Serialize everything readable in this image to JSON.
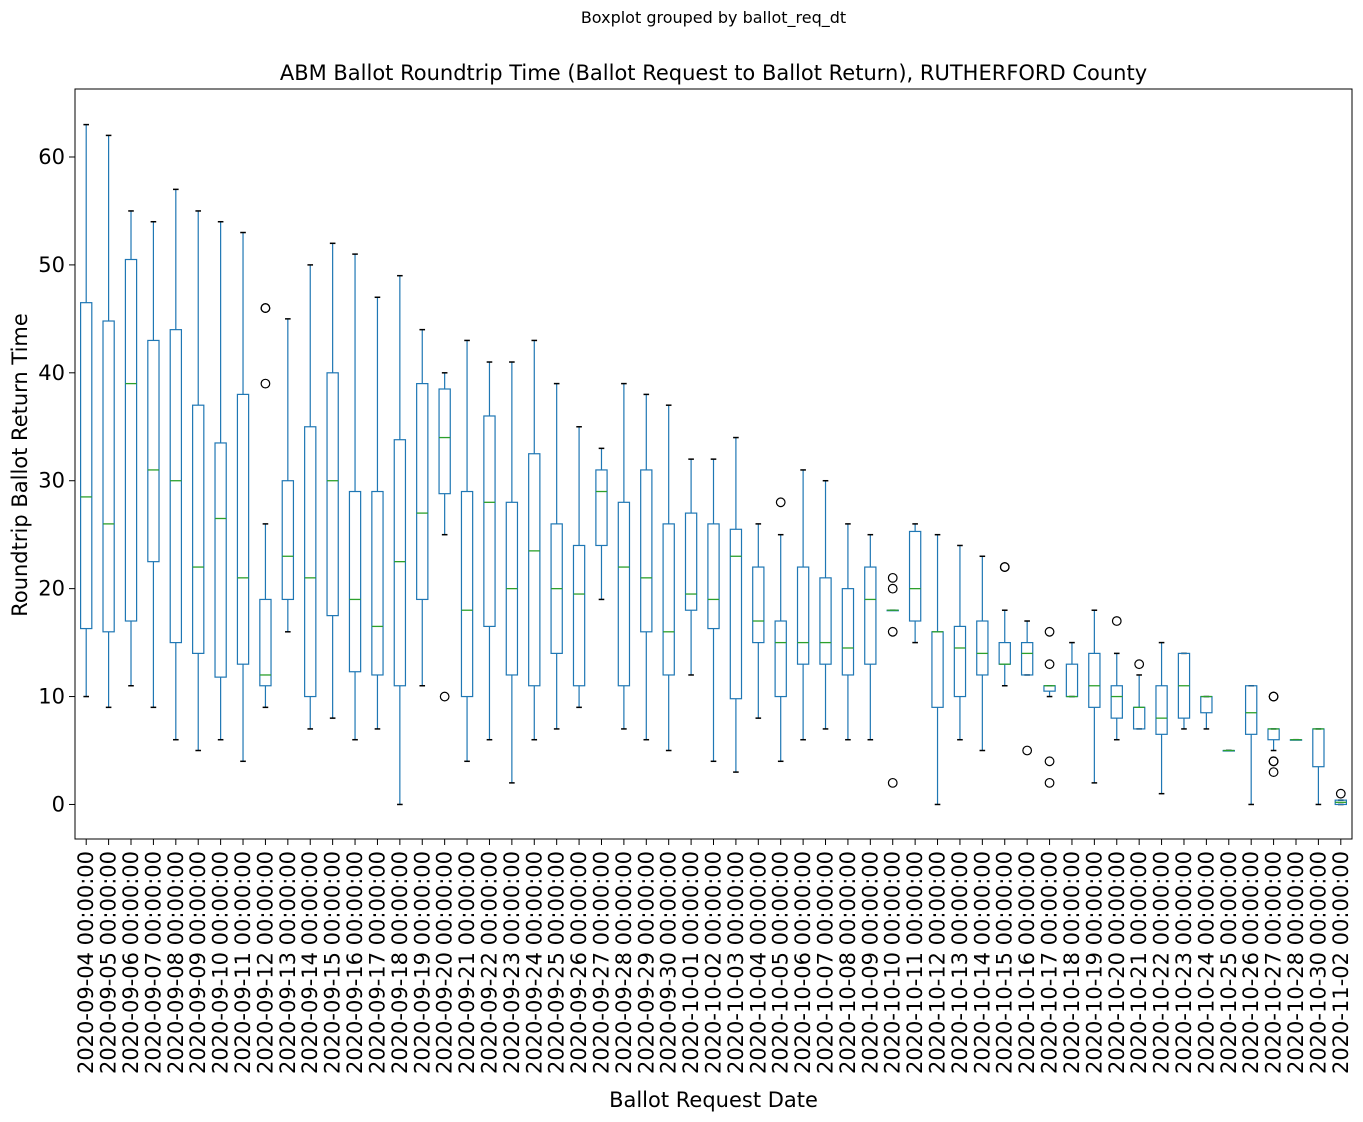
{
  "chart_data": {
    "type": "boxplot",
    "suptitle": "Boxplot grouped by ballot_req_dt",
    "title": "ABM Ballot Roundtrip Time (Ballot Request to Ballot Return), RUTHERFORD County",
    "xlabel": "Ballot Request Date",
    "ylabel": "Roundtrip Ballot Return Time",
    "ylim": [
      -3.2,
      66.3
    ],
    "yticks": [
      0,
      10,
      20,
      30,
      40,
      50,
      60
    ],
    "grid": false,
    "colors": {
      "box": "#1f77b4",
      "median": "#2ca02c",
      "outlier": "#000000"
    },
    "categories": [
      "2020-09-04 00:00:00",
      "2020-09-05 00:00:00",
      "2020-09-06 00:00:00",
      "2020-09-07 00:00:00",
      "2020-09-08 00:00:00",
      "2020-09-09 00:00:00",
      "2020-09-10 00:00:00",
      "2020-09-11 00:00:00",
      "2020-09-12 00:00:00",
      "2020-09-13 00:00:00",
      "2020-09-14 00:00:00",
      "2020-09-15 00:00:00",
      "2020-09-16 00:00:00",
      "2020-09-17 00:00:00",
      "2020-09-18 00:00:00",
      "2020-09-19 00:00:00",
      "2020-09-20 00:00:00",
      "2020-09-21 00:00:00",
      "2020-09-22 00:00:00",
      "2020-09-23 00:00:00",
      "2020-09-24 00:00:00",
      "2020-09-25 00:00:00",
      "2020-09-26 00:00:00",
      "2020-09-27 00:00:00",
      "2020-09-28 00:00:00",
      "2020-09-29 00:00:00",
      "2020-09-30 00:00:00",
      "2020-10-01 00:00:00",
      "2020-10-02 00:00:00",
      "2020-10-03 00:00:00",
      "2020-10-04 00:00:00",
      "2020-10-05 00:00:00",
      "2020-10-06 00:00:00",
      "2020-10-07 00:00:00",
      "2020-10-08 00:00:00",
      "2020-10-09 00:00:00",
      "2020-10-10 00:00:00",
      "2020-10-11 00:00:00",
      "2020-10-12 00:00:00",
      "2020-10-13 00:00:00",
      "2020-10-14 00:00:00",
      "2020-10-15 00:00:00",
      "2020-10-16 00:00:00",
      "2020-10-17 00:00:00",
      "2020-10-18 00:00:00",
      "2020-10-19 00:00:00",
      "2020-10-20 00:00:00",
      "2020-10-21 00:00:00",
      "2020-10-22 00:00:00",
      "2020-10-23 00:00:00",
      "2020-10-24 00:00:00",
      "2020-10-25 00:00:00",
      "2020-10-26 00:00:00",
      "2020-10-27 00:00:00",
      "2020-10-28 00:00:00",
      "2020-10-30 00:00:00",
      "2020-11-02 00:00:00"
    ],
    "boxes": [
      {
        "lw": 10,
        "q1": 16.3,
        "med": 28.5,
        "q3": 46.5,
        "uw": 63,
        "fl": []
      },
      {
        "lw": 9,
        "q1": 16,
        "med": 26,
        "q3": 44.8,
        "uw": 62,
        "fl": []
      },
      {
        "lw": 11,
        "q1": 17,
        "med": 39,
        "q3": 50.5,
        "uw": 55,
        "fl": []
      },
      {
        "lw": 9,
        "q1": 22.5,
        "med": 31,
        "q3": 43,
        "uw": 54,
        "fl": []
      },
      {
        "lw": 6,
        "q1": 15,
        "med": 30,
        "q3": 44,
        "uw": 57,
        "fl": []
      },
      {
        "lw": 5,
        "q1": 14,
        "med": 22,
        "q3": 37,
        "uw": 55,
        "fl": []
      },
      {
        "lw": 6,
        "q1": 11.8,
        "med": 26.5,
        "q3": 33.5,
        "uw": 54,
        "fl": []
      },
      {
        "lw": 4,
        "q1": 13,
        "med": 21,
        "q3": 38,
        "uw": 53,
        "fl": []
      },
      {
        "lw": 9,
        "q1": 11,
        "med": 12,
        "q3": 19,
        "uw": 26,
        "fl": [
          39,
          46,
          46
        ]
      },
      {
        "lw": 16,
        "q1": 19,
        "med": 23,
        "q3": 30,
        "uw": 45,
        "fl": []
      },
      {
        "lw": 7,
        "q1": 10,
        "med": 21,
        "q3": 35,
        "uw": 50,
        "fl": []
      },
      {
        "lw": 8,
        "q1": 17.5,
        "med": 30,
        "q3": 40,
        "uw": 52,
        "fl": []
      },
      {
        "lw": 6,
        "q1": 12.3,
        "med": 19,
        "q3": 29,
        "uw": 51,
        "fl": []
      },
      {
        "lw": 7,
        "q1": 12,
        "med": 16.5,
        "q3": 29,
        "uw": 47,
        "fl": []
      },
      {
        "lw": 0,
        "q1": 11,
        "med": 22.5,
        "q3": 33.8,
        "uw": 49,
        "fl": []
      },
      {
        "lw": 11,
        "q1": 19,
        "med": 27,
        "q3": 39,
        "uw": 44,
        "fl": []
      },
      {
        "lw": 25,
        "q1": 28.8,
        "med": 34,
        "q3": 38.5,
        "uw": 40,
        "fl": [
          10
        ]
      },
      {
        "lw": 4,
        "q1": 10,
        "med": 18,
        "q3": 29,
        "uw": 43,
        "fl": []
      },
      {
        "lw": 6,
        "q1": 16.5,
        "med": 28,
        "q3": 36,
        "uw": 41,
        "fl": []
      },
      {
        "lw": 2,
        "q1": 12,
        "med": 20,
        "q3": 28,
        "uw": 41,
        "fl": []
      },
      {
        "lw": 6,
        "q1": 11,
        "med": 23.5,
        "q3": 32.5,
        "uw": 43,
        "fl": []
      },
      {
        "lw": 7,
        "q1": 14,
        "med": 20,
        "q3": 26,
        "uw": 39,
        "fl": []
      },
      {
        "lw": 9,
        "q1": 11,
        "med": 19.5,
        "q3": 24,
        "uw": 35,
        "fl": []
      },
      {
        "lw": 19,
        "q1": 24,
        "med": 29,
        "q3": 31,
        "uw": 33,
        "fl": []
      },
      {
        "lw": 7,
        "q1": 11,
        "med": 22,
        "q3": 28,
        "uw": 39,
        "fl": []
      },
      {
        "lw": 6,
        "q1": 16,
        "med": 21,
        "q3": 31,
        "uw": 38,
        "fl": []
      },
      {
        "lw": 5,
        "q1": 12,
        "med": 16,
        "q3": 26,
        "uw": 37,
        "fl": []
      },
      {
        "lw": 12,
        "q1": 18,
        "med": 19.5,
        "q3": 27,
        "uw": 32,
        "fl": []
      },
      {
        "lw": 4,
        "q1": 16.3,
        "med": 19,
        "q3": 26,
        "uw": 32,
        "fl": []
      },
      {
        "lw": 3,
        "q1": 9.8,
        "med": 23,
        "q3": 25.5,
        "uw": 34,
        "fl": []
      },
      {
        "lw": 8,
        "q1": 15,
        "med": 17,
        "q3": 22,
        "uw": 26,
        "fl": []
      },
      {
        "lw": 4,
        "q1": 10,
        "med": 15,
        "q3": 17,
        "uw": 25,
        "fl": [
          28
        ]
      },
      {
        "lw": 6,
        "q1": 13,
        "med": 15,
        "q3": 22,
        "uw": 31,
        "fl": []
      },
      {
        "lw": 7,
        "q1": 13,
        "med": 15,
        "q3": 21,
        "uw": 30,
        "fl": []
      },
      {
        "lw": 6,
        "q1": 12,
        "med": 14.5,
        "q3": 20,
        "uw": 26,
        "fl": []
      },
      {
        "lw": 6,
        "q1": 13,
        "med": 19,
        "q3": 22,
        "uw": 25,
        "fl": []
      },
      {
        "lw": 18,
        "q1": 18,
        "med": 18,
        "q3": 18,
        "uw": 18,
        "fl": [
          2,
          16,
          20,
          21
        ]
      },
      {
        "lw": 15,
        "q1": 17,
        "med": 20,
        "q3": 25.3,
        "uw": 26,
        "fl": []
      },
      {
        "lw": 0,
        "q1": 9,
        "med": 16,
        "q3": 16,
        "uw": 25,
        "fl": []
      },
      {
        "lw": 6,
        "q1": 10,
        "med": 14.5,
        "q3": 16.5,
        "uw": 24,
        "fl": []
      },
      {
        "lw": 5,
        "q1": 12,
        "med": 14,
        "q3": 17,
        "uw": 23,
        "fl": []
      },
      {
        "lw": 11,
        "q1": 13,
        "med": 13,
        "q3": 15,
        "uw": 18,
        "fl": [
          22,
          22
        ]
      },
      {
        "lw": 12,
        "q1": 12,
        "med": 14,
        "q3": 15,
        "uw": 17,
        "fl": [
          5
        ]
      },
      {
        "lw": 10,
        "q1": 10.5,
        "med": 11,
        "q3": 11,
        "uw": 11,
        "fl": [
          2,
          4,
          13,
          16
        ]
      },
      {
        "lw": 10,
        "q1": 10,
        "med": 10,
        "q3": 13,
        "uw": 15,
        "fl": []
      },
      {
        "lw": 2,
        "q1": 9,
        "med": 11,
        "q3": 14,
        "uw": 18,
        "fl": []
      },
      {
        "lw": 6,
        "q1": 8,
        "med": 10,
        "q3": 11,
        "uw": 14,
        "fl": [
          17
        ]
      },
      {
        "lw": 7,
        "q1": 7,
        "med": 9,
        "q3": 9,
        "uw": 12,
        "fl": [
          13
        ]
      },
      {
        "lw": 1,
        "q1": 6.5,
        "med": 8,
        "q3": 11,
        "uw": 15,
        "fl": []
      },
      {
        "lw": 7,
        "q1": 8,
        "med": 11,
        "q3": 14,
        "uw": 14,
        "fl": []
      },
      {
        "lw": 7,
        "q1": 8.5,
        "med": 10,
        "q3": 10,
        "uw": 10,
        "fl": []
      },
      {
        "lw": 5,
        "q1": 5,
        "med": 5,
        "q3": 5,
        "uw": 5,
        "fl": []
      },
      {
        "lw": 0,
        "q1": 6.5,
        "med": 8.5,
        "q3": 11,
        "uw": 11,
        "fl": []
      },
      {
        "lw": 5,
        "q1": 6,
        "med": 7,
        "q3": 7,
        "uw": 7,
        "fl": [
          3,
          4,
          4,
          10,
          10
        ]
      },
      {
        "lw": 6,
        "q1": 6,
        "med": 6,
        "q3": 6,
        "uw": 6,
        "fl": []
      },
      {
        "lw": 0,
        "q1": 3.5,
        "med": 7,
        "q3": 7,
        "uw": 7,
        "fl": []
      },
      {
        "lw": 0,
        "q1": 0,
        "med": 0.2,
        "q3": 0.4,
        "uw": 0.4,
        "fl": [
          1
        ]
      }
    ]
  }
}
